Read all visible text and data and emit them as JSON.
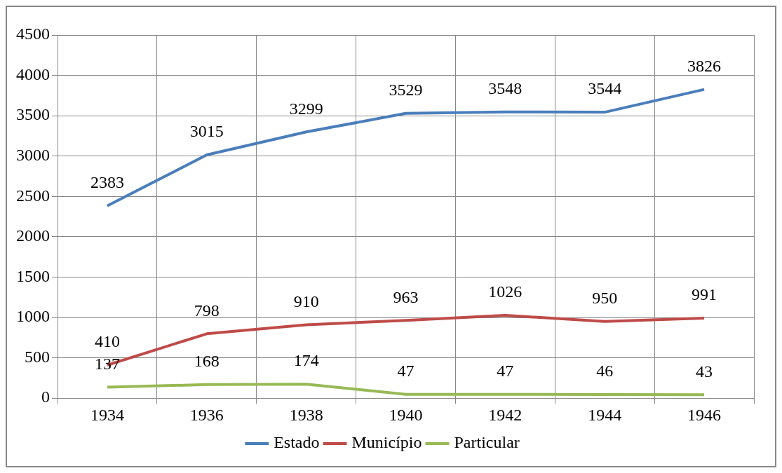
{
  "chart_data": {
    "type": "line",
    "categories": [
      "1934",
      "1936",
      "1938",
      "1940",
      "1942",
      "1944",
      "1946"
    ],
    "series": [
      {
        "name": "Estado",
        "color": "#4a7ebb",
        "values": [
          2383,
          3015,
          3299,
          3529,
          3548,
          3544,
          3826
        ]
      },
      {
        "name": "Município",
        "color": "#be4b48",
        "values": [
          410,
          798,
          910,
          963,
          1026,
          950,
          991
        ]
      },
      {
        "name": "Particular",
        "color": "#98b954",
        "values": [
          137,
          168,
          174,
          47,
          47,
          46,
          43
        ]
      }
    ],
    "ylim": [
      0,
      4500
    ],
    "yticks": [
      0,
      500,
      1000,
      1500,
      2000,
      2500,
      3000,
      3500,
      4000,
      4500
    ],
    "grid": true,
    "legend": "bottom",
    "data_labels": true,
    "marker": "none",
    "line_style": "solid"
  }
}
